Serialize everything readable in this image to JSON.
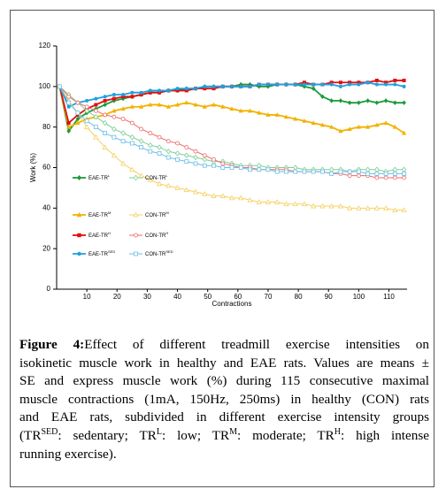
{
  "chart_data": {
    "type": "line",
    "ylabel": "Work (%)",
    "xlabel": "Contractions",
    "xlim": [
      0,
      116
    ],
    "xticks": [
      10,
      20,
      30,
      40,
      50,
      60,
      70,
      80,
      90,
      100,
      110
    ],
    "ylim": [
      0,
      120
    ],
    "yticks": [
      0,
      20,
      40,
      60,
      80,
      100,
      120
    ],
    "x": [
      1,
      4,
      7,
      10,
      13,
      16,
      19,
      22,
      25,
      28,
      31,
      34,
      37,
      40,
      43,
      46,
      49,
      52,
      55,
      58,
      61,
      64,
      67,
      70,
      73,
      76,
      79,
      82,
      85,
      88,
      91,
      94,
      97,
      100,
      103,
      106,
      109,
      112,
      115
    ],
    "series": [
      {
        "name": "EAE-TR",
        "name_sup": "L",
        "color": "#1a9b3a",
        "marker": "diamond",
        "filled": true,
        "values": [
          100,
          78,
          84,
          87,
          89,
          91,
          93,
          94,
          95,
          96,
          97,
          97,
          98,
          98,
          99,
          99,
          100,
          100,
          100,
          100,
          101,
          101,
          100,
          100,
          101,
          101,
          101,
          100,
          99,
          95,
          93,
          93,
          92,
          92,
          93,
          92,
          93,
          92,
          92
        ]
      },
      {
        "name": "EAE-TR",
        "name_sup": "M",
        "color": "#f2b200",
        "marker": "triangle",
        "filled": true,
        "values": [
          100,
          80,
          82,
          84,
          85,
          86,
          88,
          89,
          90,
          90,
          91,
          91,
          90,
          91,
          92,
          91,
          90,
          91,
          90,
          89,
          88,
          88,
          87,
          86,
          86,
          85,
          84,
          83,
          82,
          81,
          80,
          78,
          79,
          80,
          80,
          81,
          82,
          80,
          77
        ]
      },
      {
        "name": "EAE-TR",
        "name_sup": "H",
        "color": "#e01010",
        "marker": "square",
        "filled": true,
        "values": [
          100,
          82,
          86,
          89,
          91,
          93,
          94,
          95,
          95,
          96,
          97,
          97,
          98,
          98,
          98,
          99,
          99,
          99,
          100,
          100,
          100,
          100,
          101,
          101,
          101,
          101,
          101,
          102,
          101,
          101,
          102,
          102,
          102,
          102,
          102,
          103,
          102,
          103,
          103
        ]
      },
      {
        "name": "EAE-TR",
        "name_sup": "SED",
        "color": "#1ea0e0",
        "marker": "circle",
        "filled": true,
        "values": [
          100,
          90,
          92,
          93,
          94,
          95,
          96,
          96,
          97,
          97,
          98,
          98,
          98,
          99,
          99,
          99,
          100,
          100,
          100,
          100,
          100,
          100,
          101,
          101,
          101,
          101,
          101,
          101,
          101,
          101,
          101,
          100,
          101,
          101,
          102,
          101,
          101,
          101,
          100
        ]
      },
      {
        "name": "CON-TR",
        "name_sup": "L",
        "color": "#7ccf95",
        "marker": "diamond",
        "filled": false,
        "values": [
          100,
          96,
          92,
          88,
          85,
          82,
          79,
          77,
          75,
          73,
          71,
          70,
          68,
          67,
          66,
          65,
          64,
          63,
          63,
          62,
          61,
          61,
          61,
          60,
          60,
          60,
          60,
          59,
          59,
          59,
          59,
          59,
          58,
          59,
          59,
          59,
          58,
          59,
          59
        ]
      },
      {
        "name": "CON-TR",
        "name_sup": "M",
        "color": "#f5d060",
        "marker": "triangle",
        "filled": false,
        "values": [
          100,
          93,
          87,
          80,
          75,
          70,
          66,
          62,
          59,
          56,
          54,
          52,
          51,
          50,
          49,
          48,
          47,
          46,
          46,
          45,
          45,
          44,
          43,
          43,
          43,
          42,
          42,
          42,
          41,
          41,
          41,
          41,
          40,
          40,
          40,
          40,
          40,
          39,
          39
        ]
      },
      {
        "name": "CON-TR",
        "name_sup": "H",
        "color": "#ee6a6a",
        "marker": "circle",
        "filled": false,
        "values": [
          100,
          95,
          92,
          90,
          88,
          86,
          85,
          84,
          82,
          79,
          77,
          75,
          73,
          72,
          70,
          68,
          66,
          64,
          62,
          61,
          60,
          60,
          59,
          59,
          59,
          59,
          58,
          58,
          58,
          58,
          57,
          57,
          56,
          56,
          56,
          55,
          55,
          55,
          55
        ]
      },
      {
        "name": "CON-TR",
        "name_sup": "SED",
        "color": "#6cbfe6",
        "marker": "square",
        "filled": false,
        "values": [
          100,
          92,
          87,
          83,
          80,
          77,
          75,
          73,
          72,
          70,
          68,
          67,
          65,
          64,
          63,
          62,
          61,
          61,
          60,
          60,
          60,
          59,
          59,
          59,
          58,
          58,
          58,
          58,
          58,
          58,
          57,
          58,
          58,
          58,
          57,
          57,
          57,
          57,
          57
        ]
      }
    ]
  },
  "caption": {
    "label": "Figure 4:",
    "lines": [
      [
        "Effect of different treadmill exercise intensities on"
      ],
      [
        "isokinetic muscle work in healthy and EAE rats. Values are means ±"
      ],
      [
        "SE and express muscle work (%) during 115 consecutive maximal"
      ],
      [
        "muscle contractions (1mA, 150Hz, 250ms) in healthy (CON) rats"
      ],
      [
        "and EAE rats, subdivided in different exercise intensity groups"
      ],
      [
        "(TR",
        {
          "sup": "SED"
        },
        ": sedentary; TR",
        {
          "sup": "L"
        },
        ": low; TR",
        {
          "sup": "M"
        },
        ": moderate; TR",
        {
          "sup": "H"
        },
        ": high intense"
      ],
      [
        "running exercise)."
      ]
    ]
  }
}
